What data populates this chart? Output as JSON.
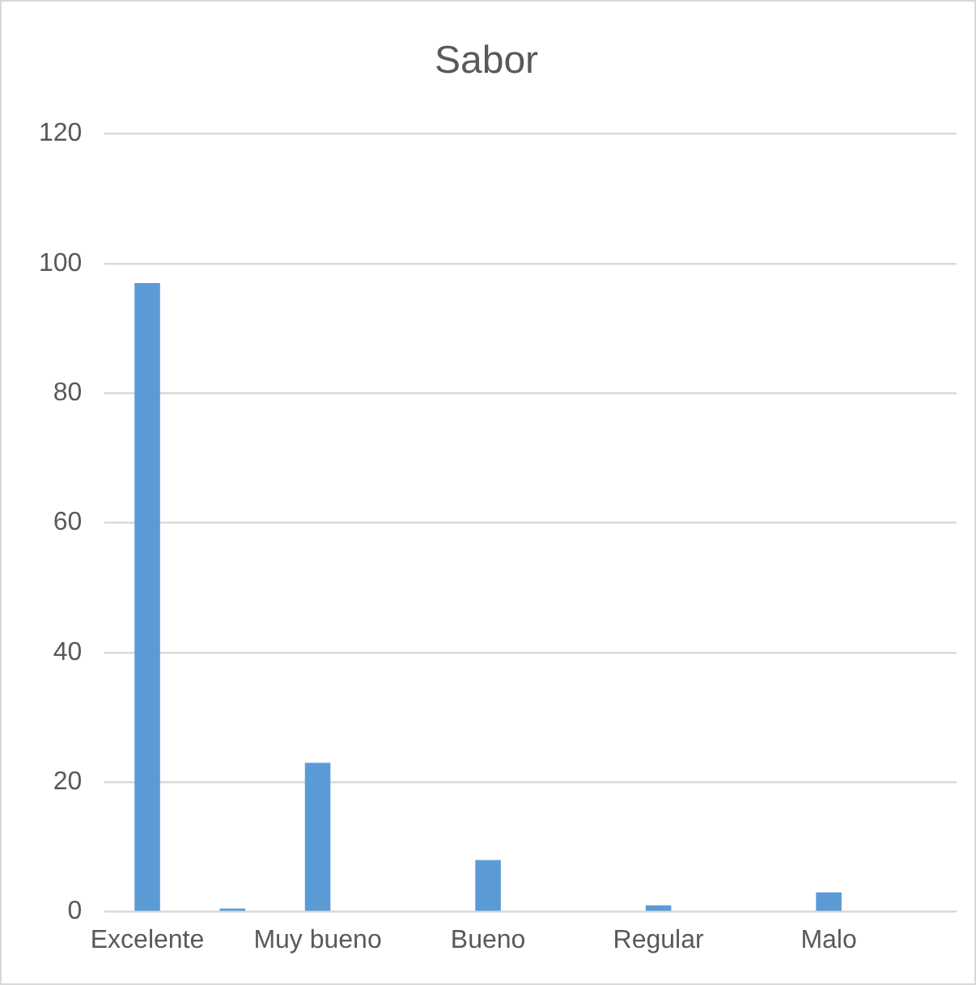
{
  "chart_data": {
    "type": "bar",
    "title": "Sabor",
    "categories": [
      "Excelente",
      null,
      "Muy bueno",
      null,
      "Bueno",
      null,
      "Regular",
      null,
      "Malo",
      null
    ],
    "values": [
      97,
      0.5,
      23,
      null,
      8,
      null,
      1,
      null,
      3,
      null
    ],
    "color": "#5b9bd5",
    "ylim": [
      0,
      120
    ],
    "yticks": [
      0,
      20,
      40,
      60,
      80,
      100,
      120
    ],
    "grid": "y",
    "legend": false
  }
}
